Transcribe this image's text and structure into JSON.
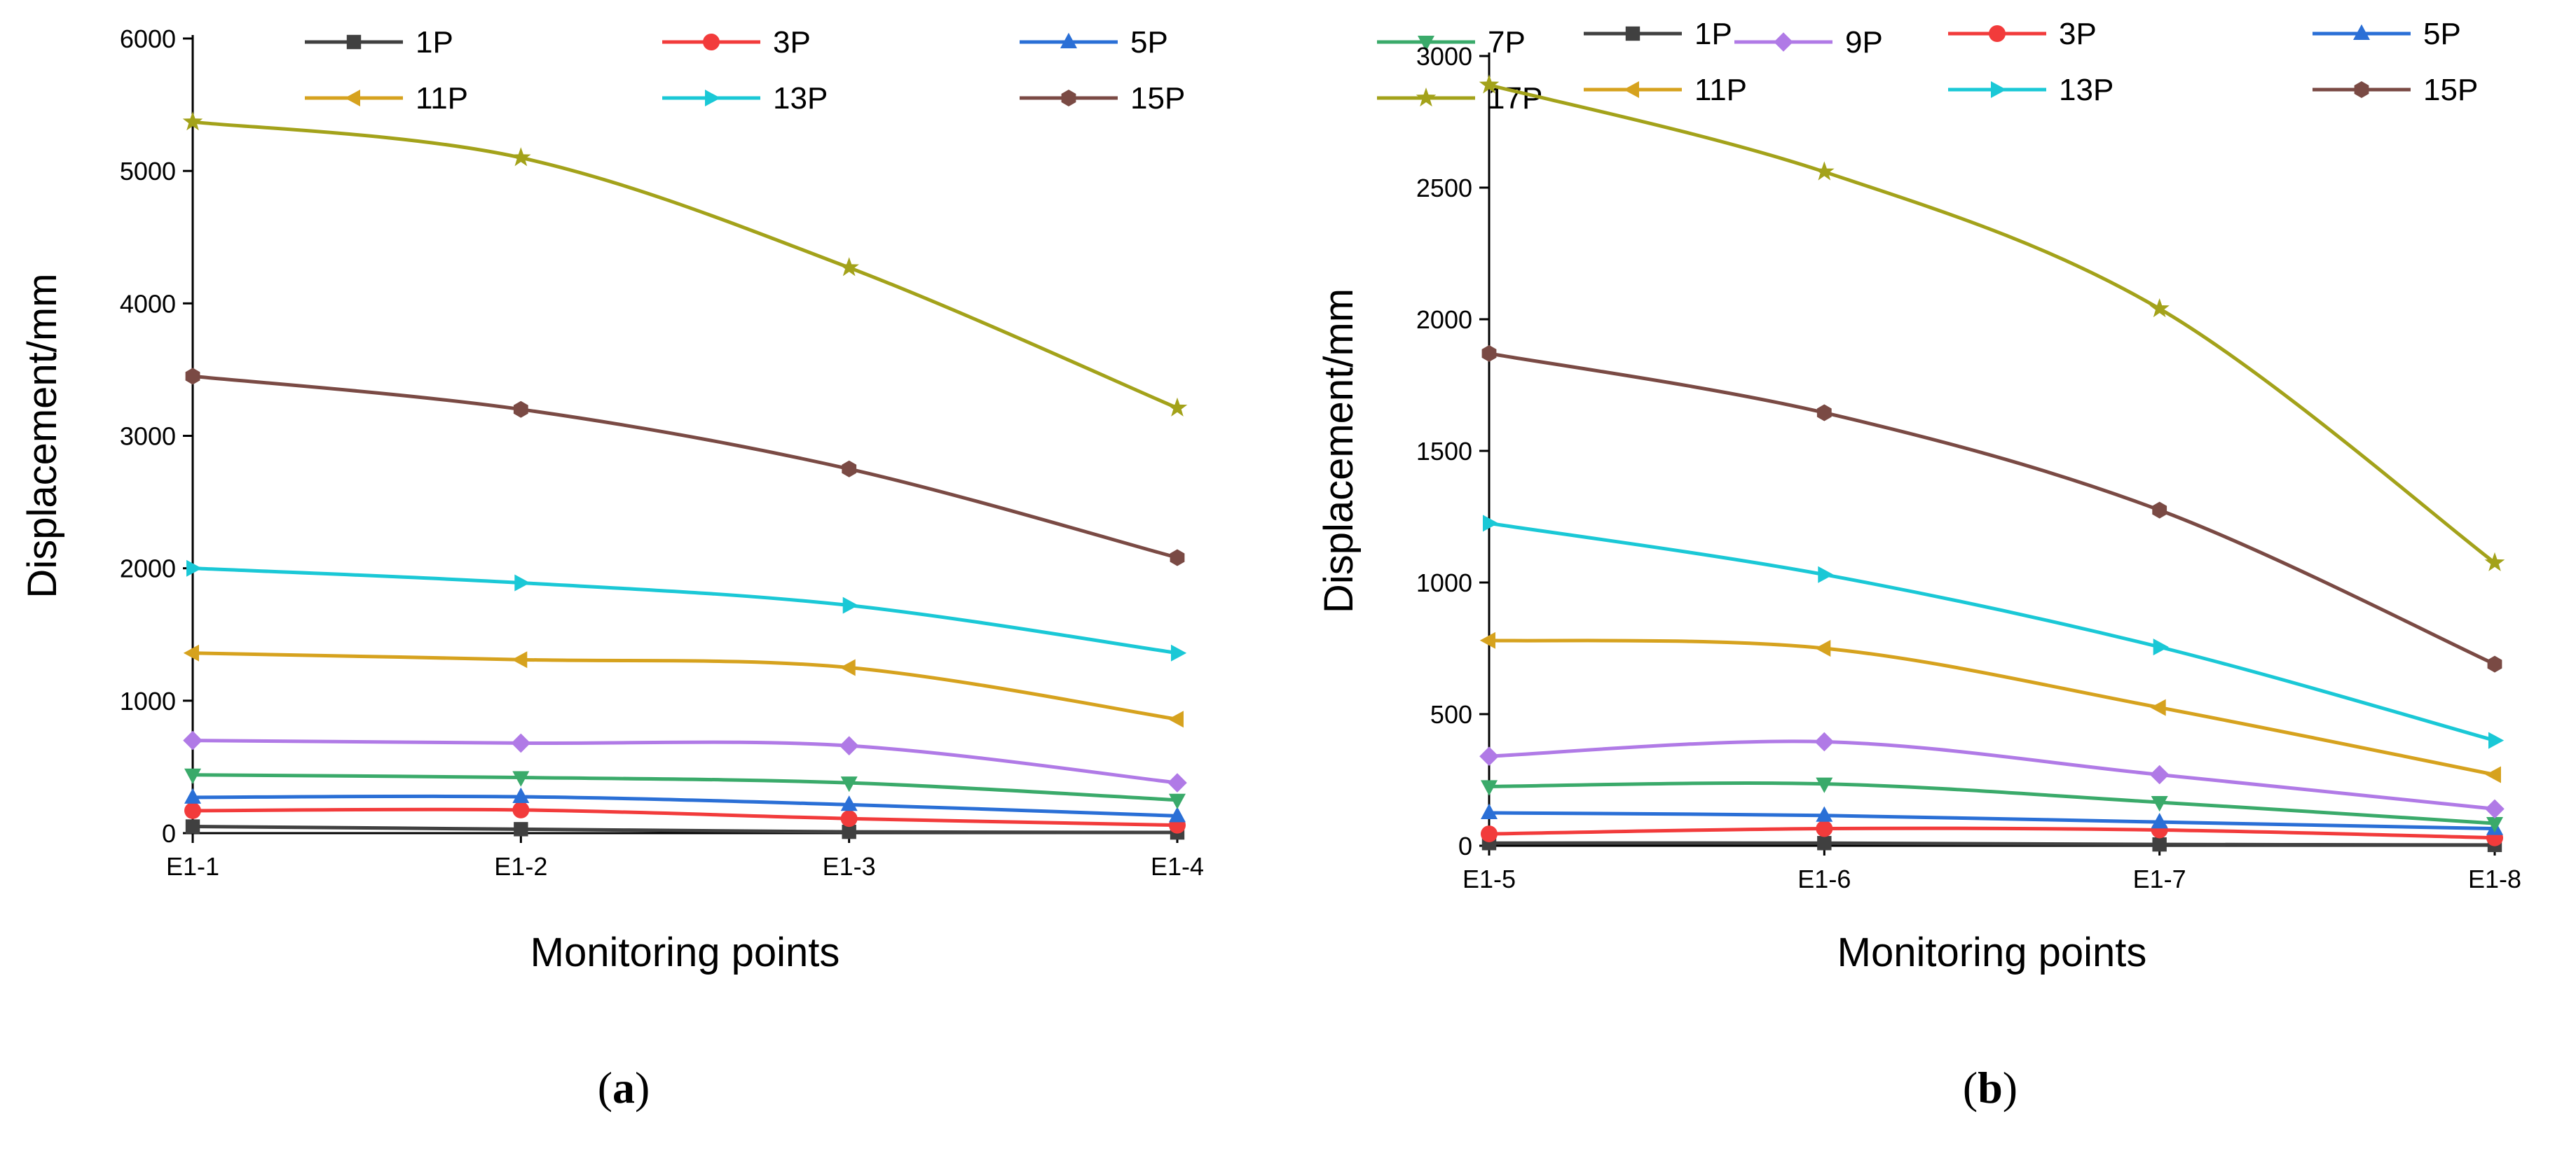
{
  "figure": {
    "panels": [
      {
        "label": "(a)",
        "label_letter": "a"
      },
      {
        "label": "(b)",
        "label_letter": "b"
      }
    ]
  },
  "series_colors": {
    "1P": "#404040",
    "3P": "#f23b3b",
    "5P": "#2a6fd6",
    "7P": "#3aaa6a",
    "9P": "#b07ae6",
    "11P": "#d6a21e",
    "13P": "#1ac8d6",
    "15P": "#7a4a44",
    "17P": "#a3a21a"
  },
  "series_markers": {
    "1P": "square",
    "3P": "circle",
    "5P": "triangle-up",
    "7P": "triangle-down",
    "9P": "diamond",
    "11P": "triangle-left",
    "13P": "triangle-right",
    "15P": "hexagon",
    "17P": "star"
  },
  "chart_data": [
    {
      "type": "line",
      "title": "",
      "xlabel": "Monitoring points",
      "ylabel": "Displacement/mm",
      "categories": [
        "E1-1",
        "E1-2",
        "E1-3",
        "E1-4"
      ],
      "ylim": [
        0,
        6000
      ],
      "yticks": [
        0,
        1000,
        2000,
        3000,
        4000,
        5000,
        6000
      ],
      "legend_position": "top",
      "grid": false,
      "series": [
        {
          "name": "1P",
          "values": [
            50,
            30,
            10,
            5
          ]
        },
        {
          "name": "3P",
          "values": [
            170,
            175,
            110,
            60
          ]
        },
        {
          "name": "5P",
          "values": [
            270,
            275,
            215,
            130
          ]
        },
        {
          "name": "7P",
          "values": [
            440,
            420,
            380,
            250
          ]
        },
        {
          "name": "9P",
          "values": [
            700,
            680,
            660,
            380
          ]
        },
        {
          "name": "11P",
          "values": [
            1360,
            1310,
            1250,
            860
          ]
        },
        {
          "name": "13P",
          "values": [
            2000,
            1890,
            1720,
            1360
          ]
        },
        {
          "name": "15P",
          "values": [
            3450,
            3200,
            2750,
            2080
          ]
        },
        {
          "name": "17P",
          "values": [
            5370,
            5100,
            4270,
            3210
          ]
        }
      ]
    },
    {
      "type": "line",
      "title": "",
      "xlabel": "Monitoring points",
      "ylabel": "Displacement/mm",
      "categories": [
        "E1-5",
        "E1-6",
        "E1-7",
        "E1-8"
      ],
      "ylim": [
        0,
        3000
      ],
      "yticks": [
        0,
        500,
        1000,
        1500,
        2000,
        2500,
        3000
      ],
      "legend_position": "top",
      "grid": false,
      "series": [
        {
          "name": "1P",
          "values": [
            10,
            10,
            5,
            3
          ]
        },
        {
          "name": "3P",
          "values": [
            45,
            65,
            60,
            30
          ]
        },
        {
          "name": "5P",
          "values": [
            125,
            115,
            90,
            65
          ]
        },
        {
          "name": "7P",
          "values": [
            225,
            235,
            165,
            85
          ]
        },
        {
          "name": "9P",
          "values": [
            340,
            395,
            270,
            140
          ]
        },
        {
          "name": "11P",
          "values": [
            780,
            750,
            525,
            270
          ]
        },
        {
          "name": "13P",
          "values": [
            1225,
            1030,
            755,
            400
          ]
        },
        {
          "name": "15P",
          "values": [
            1870,
            1645,
            1275,
            690
          ]
        },
        {
          "name": "17P",
          "values": [
            2890,
            2560,
            2040,
            1075
          ]
        }
      ]
    }
  ]
}
